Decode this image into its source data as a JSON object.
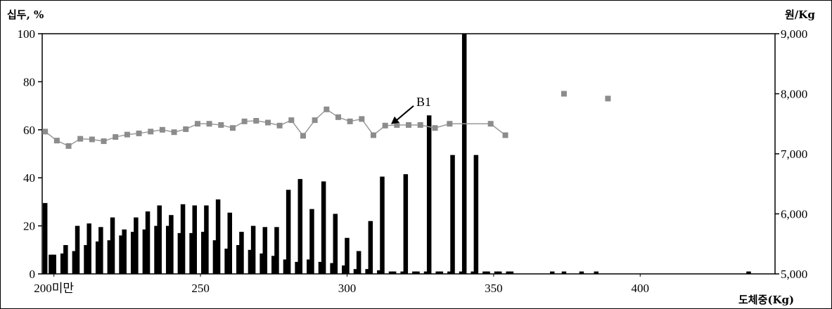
{
  "chart_data": {
    "type": "bar+line",
    "left_axis": {
      "title": "십두, %",
      "ticks": [
        "0",
        "20",
        "40",
        "60",
        "80",
        "100"
      ],
      "range": [
        0,
        100
      ]
    },
    "right_axis": {
      "title": "원/Kg",
      "ticks": [
        "5,000",
        "6,000",
        "7,000",
        "8,000",
        "9,000"
      ],
      "range": [
        5000,
        9000
      ]
    },
    "x_axis": {
      "title": "도체중(Kg)",
      "ticks": [
        "200미만",
        "250",
        "300",
        "350",
        "400"
      ],
      "range": [
        196,
        446
      ]
    },
    "annotation": {
      "label": "B1",
      "target_x": 315,
      "target_y": 7400
    },
    "bar_series_a": {
      "x": [
        197,
        200,
        204,
        208,
        212,
        216,
        220,
        224,
        228,
        232,
        236,
        240,
        244,
        248,
        252,
        256,
        260,
        264,
        268,
        272,
        276,
        280,
        284,
        288,
        292,
        296,
        300,
        304,
        308,
        312,
        316,
        320,
        324,
        328,
        332,
        336,
        340,
        344,
        348,
        352,
        356,
        370,
        374,
        380,
        385,
        437
      ],
      "values": [
        29.5,
        8,
        12,
        20,
        21,
        19.5,
        23.5,
        18.5,
        23.5,
        26,
        28.5,
        24.5,
        29,
        28.5,
        28.5,
        31,
        25.5,
        17.5,
        20,
        19.5,
        19.5,
        35,
        39.5,
        27,
        38.5,
        25,
        15,
        9.5,
        22,
        40.5,
        1,
        41.5,
        1,
        66,
        1,
        49.5,
        100,
        49.5,
        1,
        1,
        1,
        1,
        1,
        1,
        1,
        1
      ]
    },
    "bar_series_b": {
      "x": [
        199,
        203,
        207,
        211,
        215,
        219,
        223,
        227,
        231,
        235,
        239,
        243,
        247,
        251,
        255,
        259,
        263,
        267,
        271,
        275,
        279,
        283,
        287,
        291,
        295,
        299,
        303,
        307,
        311,
        315,
        319,
        323,
        327,
        331,
        335,
        339,
        343,
        347,
        351,
        355
      ],
      "values": [
        8,
        8.5,
        9.5,
        12,
        13.5,
        14,
        16,
        17.5,
        18.5,
        20,
        20,
        17,
        17,
        17.5,
        14,
        10.5,
        12,
        10,
        8.5,
        7.5,
        6,
        5,
        6,
        5,
        4.5,
        3.5,
        2,
        2,
        1.5,
        1,
        1,
        1,
        1,
        1,
        1,
        1,
        1,
        1,
        1,
        1
      ]
    },
    "price_line": {
      "x": [
        197,
        201,
        205,
        209,
        213,
        217,
        221,
        225,
        229,
        233,
        237,
        241,
        245,
        249,
        253,
        257,
        261,
        265,
        269,
        273,
        277,
        281,
        285,
        289,
        293,
        297,
        301,
        305,
        309,
        313,
        317,
        321,
        325,
        330,
        335,
        349,
        354
      ],
      "y": [
        7370,
        7220,
        7130,
        7250,
        7240,
        7210,
        7280,
        7320,
        7340,
        7370,
        7400,
        7360,
        7410,
        7500,
        7500,
        7480,
        7430,
        7540,
        7550,
        7520,
        7470,
        7560,
        7300,
        7560,
        7740,
        7610,
        7540,
        7580,
        7310,
        7470,
        7480,
        7480,
        7480,
        7430,
        7500,
        7500,
        7310
      ]
    },
    "outlier_points": {
      "x": [
        374,
        389
      ],
      "y": [
        8000,
        7920
      ]
    },
    "colors": {
      "bars": "#000000",
      "line": "#9a9a9a",
      "marker": "#8c8c8c"
    },
    "grid": false
  }
}
